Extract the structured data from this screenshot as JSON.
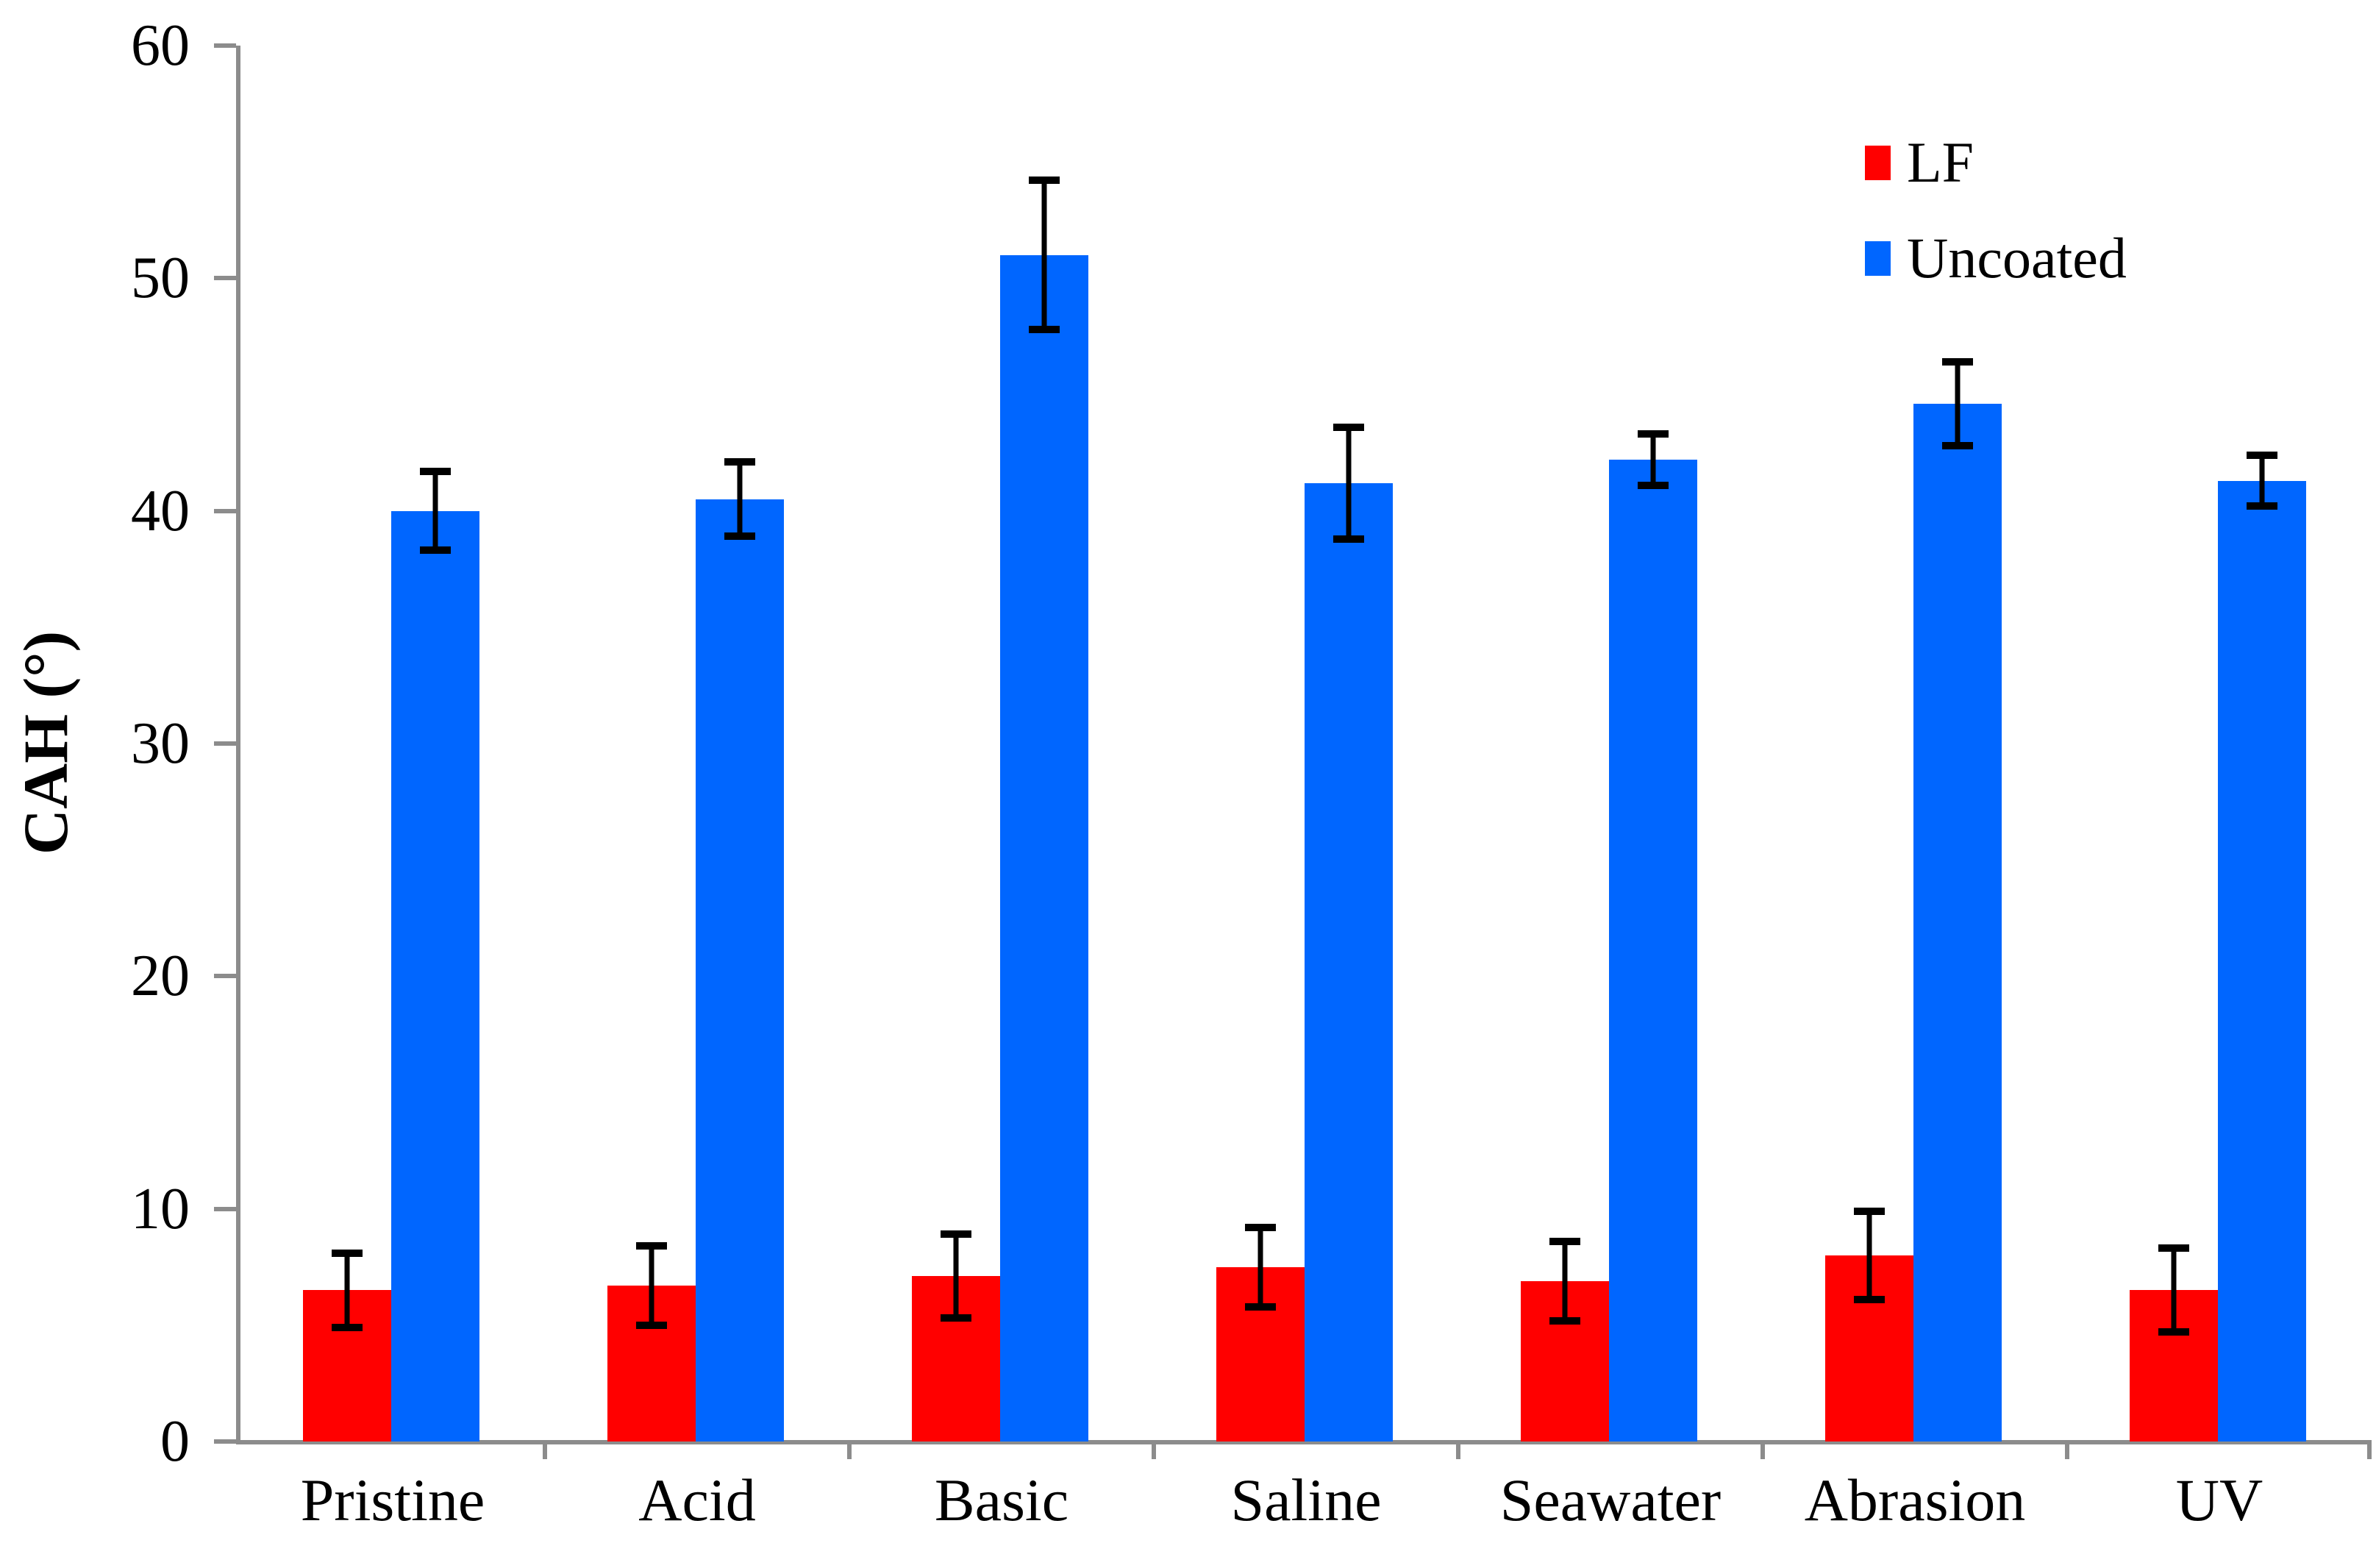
{
  "chart_data": {
    "type": "bar",
    "title": "",
    "ylabel": "CAH (°)",
    "xlabel": "",
    "categories": [
      "Pristine",
      "Acid",
      "Basic",
      "Saline",
      "Seawater",
      "Abrasion",
      "UV"
    ],
    "series": [
      {
        "name": "LF",
        "color": "#ff0000",
        "values": [
          6.5,
          6.7,
          7.1,
          7.5,
          6.9,
          8.0,
          6.5
        ],
        "errors": [
          1.6,
          1.7,
          1.8,
          1.7,
          1.7,
          1.9,
          1.8
        ]
      },
      {
        "name": "Uncoated",
        "color": "#0066ff",
        "values": [
          40.0,
          40.5,
          51.0,
          41.2,
          42.2,
          44.6,
          41.3
        ],
        "errors": [
          1.7,
          1.6,
          3.2,
          2.4,
          1.1,
          1.8,
          1.1
        ]
      }
    ],
    "ylim": [
      0,
      60
    ],
    "yticks": [
      0,
      10,
      20,
      30,
      40,
      50,
      60
    ],
    "grid": false,
    "error_bars": true,
    "legend_position": "top-right",
    "axis_color": "#8c8c8c",
    "errorbar_color": "#000000",
    "text_color": "#000000",
    "background_color": "#ffffff"
  }
}
